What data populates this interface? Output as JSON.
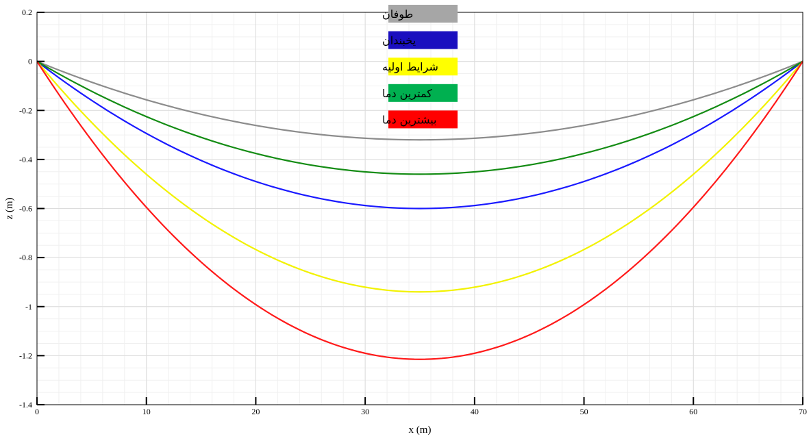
{
  "chart_data": {
    "type": "line",
    "title": "",
    "xlabel": "x (m)",
    "ylabel": "z (m)",
    "xlim": [
      0,
      70
    ],
    "ylim": [
      -1.4,
      0.2
    ],
    "xticks": [
      0,
      10,
      20,
      30,
      40,
      50,
      60,
      70
    ],
    "xtick_labels": [
      "0",
      "10",
      "20",
      "30",
      "40",
      "50",
      "60",
      "70"
    ],
    "yticks": [
      0.2,
      0,
      -0.2,
      -0.4,
      -0.6,
      -0.8,
      -1,
      -1.2,
      -1.4
    ],
    "ytick_labels": [
      "0.2",
      "0",
      "-0.2",
      "-0.4",
      "-0.6",
      "-0.8",
      "-1",
      "-1.2",
      "-1.4"
    ],
    "grid": true,
    "legend_position": "top-center",
    "series": [
      {
        "name": "طوفان",
        "color": "#a6a6a6",
        "line_color": "#8c8c8c",
        "x": [
          0,
          35,
          70
        ],
        "y": [
          0,
          -0.32,
          0
        ]
      },
      {
        "name": "یخبندان",
        "color": "#1a0fbf",
        "line_color": "#1a1aff",
        "x": [
          0,
          35,
          70
        ],
        "y": [
          0,
          -0.6,
          0
        ]
      },
      {
        "name": "شرایط اولیه",
        "color": "#ffff00",
        "line_color": "#f2f200",
        "x": [
          0,
          35,
          70
        ],
        "y": [
          0,
          -0.94,
          0
        ]
      },
      {
        "name": "کمترین دما",
        "color": "#00b050",
        "line_color": "#148c14",
        "x": [
          0,
          35,
          70
        ],
        "y": [
          0,
          -0.46,
          0
        ]
      },
      {
        "name": "بیشترین دما",
        "color": "#ff0000",
        "line_color": "#ff1a1a",
        "x": [
          0,
          35,
          70
        ],
        "y": [
          0,
          -1.215,
          0
        ]
      }
    ]
  }
}
